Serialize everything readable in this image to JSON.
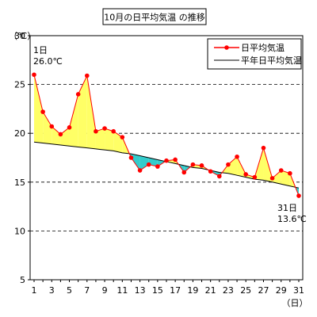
{
  "chart_data": {
    "type": "line",
    "title": "10月の日平均気温 の推移",
    "ylabel": "（℃）",
    "xlabel": "（日）",
    "ylim": [
      5,
      30
    ],
    "yticks": [
      5,
      10,
      15,
      20,
      25,
      30
    ],
    "xlim": [
      1,
      31
    ],
    "xticks": [
      1,
      3,
      5,
      7,
      9,
      11,
      13,
      15,
      17,
      19,
      21,
      23,
      25,
      27,
      29,
      31
    ],
    "grid": "dashed horizontal at 10, 15, 20, 25",
    "legend_position": "top-right",
    "fill_above_color": "#ffff66",
    "fill_below_color": "#33cccc",
    "x": [
      1,
      2,
      3,
      4,
      5,
      6,
      7,
      8,
      9,
      10,
      11,
      12,
      13,
      14,
      15,
      16,
      17,
      18,
      19,
      20,
      21,
      22,
      23,
      24,
      25,
      26,
      27,
      28,
      29,
      30,
      31
    ],
    "series": [
      {
        "name": "日平均気温",
        "color": "#ff0000",
        "marker": "circle",
        "values": [
          26.0,
          22.2,
          20.7,
          19.9,
          20.6,
          24.0,
          25.9,
          20.2,
          20.5,
          20.2,
          19.6,
          17.5,
          16.2,
          16.8,
          16.6,
          17.2,
          17.3,
          16.0,
          16.8,
          16.7,
          16.1,
          15.6,
          16.8,
          17.6,
          15.8,
          15.5,
          18.5,
          15.4,
          16.2,
          15.9,
          13.6
        ]
      },
      {
        "name": "平年日平均気温",
        "color": "#000000",
        "marker": "none",
        "values": [
          19.1,
          19.0,
          18.9,
          18.8,
          18.7,
          18.6,
          18.5,
          18.4,
          18.3,
          18.2,
          18.0,
          17.9,
          17.7,
          17.5,
          17.3,
          17.1,
          16.9,
          16.7,
          16.5,
          16.4,
          16.2,
          16.0,
          15.9,
          15.7,
          15.5,
          15.3,
          15.2,
          15.0,
          14.8,
          14.6,
          14.4
        ]
      }
    ],
    "annotations": [
      {
        "day_label": "1日",
        "value_label": "26.0℃",
        "anchor_day": 1
      },
      {
        "day_label": "31日",
        "value_label": "13.6℃",
        "anchor_day": 31
      }
    ]
  }
}
